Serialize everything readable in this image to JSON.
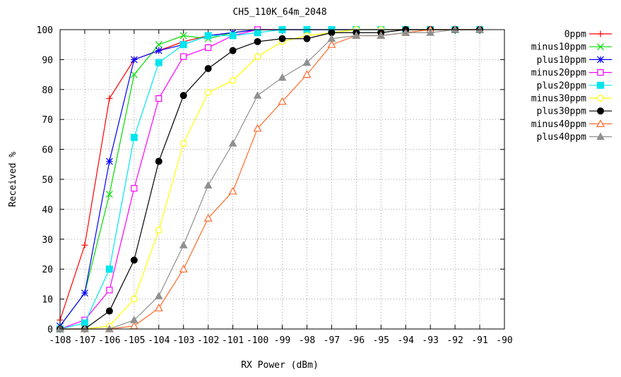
{
  "chart_data": {
    "type": "line",
    "title": "CH5_110K_64m_2048",
    "xlabel": "RX Power (dBm)",
    "ylabel": "Received %",
    "xlim": [
      -108,
      -90
    ],
    "ylim": [
      0,
      100
    ],
    "xticks": [
      -108,
      -107,
      -106,
      -105,
      -104,
      -103,
      -102,
      -101,
      -100,
      -99,
      -98,
      -97,
      -96,
      -95,
      -94,
      -93,
      -92,
      -91,
      -90
    ],
    "yticks": [
      0,
      10,
      20,
      30,
      40,
      50,
      60,
      70,
      80,
      90,
      100
    ],
    "grid": true,
    "legend_position": "right",
    "series": [
      {
        "name": "0ppm",
        "color": "#ff0000",
        "marker": "plus",
        "x": [
          -108,
          -107,
          -106,
          -105,
          -104,
          -103,
          -102,
          -101,
          -100,
          -99,
          -98,
          -97,
          -96,
          -95,
          -94,
          -93,
          -92,
          -91
        ],
        "y": [
          3,
          28,
          77,
          90,
          93,
          96,
          98,
          99,
          100,
          100,
          100,
          100,
          100,
          100,
          100,
          100,
          100,
          100
        ]
      },
      {
        "name": "minus10ppm",
        "color": "#00dd00",
        "marker": "cross",
        "x": [
          -108,
          -107,
          -106,
          -105,
          -104,
          -103,
          -102,
          -101,
          -100,
          -99,
          -98,
          -97,
          -96,
          -95,
          -94,
          -93,
          -92,
          -91
        ],
        "y": [
          1,
          12,
          45,
          85,
          95,
          98,
          97,
          99,
          100,
          100,
          100,
          100,
          100,
          100,
          100,
          100,
          100,
          100
        ]
      },
      {
        "name": "plus10ppm",
        "color": "#0000ff",
        "marker": "asterisk",
        "x": [
          -108,
          -107,
          -106,
          -105,
          -104,
          -103,
          -102,
          -101,
          -100,
          -99,
          -98,
          -97,
          -96,
          -95,
          -94,
          -93,
          -92,
          -91
        ],
        "y": [
          1,
          12,
          56,
          90,
          93,
          95,
          98,
          99,
          100,
          100,
          100,
          100,
          100,
          100,
          100,
          100,
          100,
          100
        ]
      },
      {
        "name": "minus20ppm",
        "color": "#ff00ff",
        "marker": "square-open",
        "x": [
          -108,
          -107,
          -106,
          -105,
          -104,
          -103,
          -102,
          -101,
          -100,
          -99,
          -98,
          -97,
          -96,
          -95,
          -94,
          -93,
          -92,
          -91
        ],
        "y": [
          0,
          3,
          13,
          47,
          77,
          91,
          94,
          98,
          100,
          100,
          100,
          100,
          100,
          100,
          100,
          100,
          100,
          100
        ]
      },
      {
        "name": "plus20ppm",
        "color": "#00e5ee",
        "marker": "square-filled",
        "x": [
          -108,
          -107,
          -106,
          -105,
          -104,
          -103,
          -102,
          -101,
          -100,
          -99,
          -98,
          -97,
          -96,
          -95,
          -94,
          -93,
          -92,
          -91
        ],
        "y": [
          0,
          2,
          20,
          64,
          89,
          95,
          98,
          98,
          99,
          100,
          100,
          100,
          100,
          100,
          100,
          100,
          100,
          100
        ]
      },
      {
        "name": "minus30ppm",
        "color": "#ffff00",
        "marker": "circle-open",
        "x": [
          -108,
          -107,
          -106,
          -105,
          -104,
          -103,
          -102,
          -101,
          -100,
          -99,
          -98,
          -97,
          -96,
          -95,
          -94,
          -93,
          -92,
          -91
        ],
        "y": [
          0,
          0,
          1,
          10,
          33,
          62,
          79,
          83,
          91,
          96,
          98,
          99,
          100,
          100,
          100,
          100,
          100,
          100
        ]
      },
      {
        "name": "plus30ppm",
        "color": "#000000",
        "marker": "circle-filled",
        "x": [
          -108,
          -107,
          -106,
          -105,
          -104,
          -103,
          -102,
          -101,
          -100,
          -99,
          -98,
          -97,
          -96,
          -95,
          -94,
          -93,
          -92,
          -91
        ],
        "y": [
          0,
          0,
          6,
          23,
          56,
          78,
          87,
          93,
          96,
          97,
          97,
          99,
          99,
          99,
          100,
          100,
          100,
          100
        ]
      },
      {
        "name": "minus40ppm",
        "color": "#ff6a2a",
        "marker": "triangle-open",
        "x": [
          -108,
          -107,
          -106,
          -105,
          -104,
          -103,
          -102,
          -101,
          -100,
          -99,
          -98,
          -97,
          -96,
          -95,
          -94,
          -93,
          -92,
          -91
        ],
        "y": [
          0,
          0,
          0,
          1,
          7,
          20,
          37,
          46,
          67,
          76,
          85,
          95,
          98,
          98,
          99,
          100,
          100,
          100
        ]
      },
      {
        "name": "plus40ppm",
        "color": "#909090",
        "marker": "triangle-filled",
        "x": [
          -108,
          -107,
          -106,
          -105,
          -104,
          -103,
          -102,
          -101,
          -100,
          -99,
          -98,
          -97,
          -96,
          -95,
          -94,
          -93,
          -92,
          -91
        ],
        "y": [
          0,
          0,
          0,
          3,
          11,
          28,
          48,
          62,
          78,
          84,
          89,
          97,
          98,
          98,
          99,
          99,
          100,
          100
        ]
      }
    ]
  }
}
